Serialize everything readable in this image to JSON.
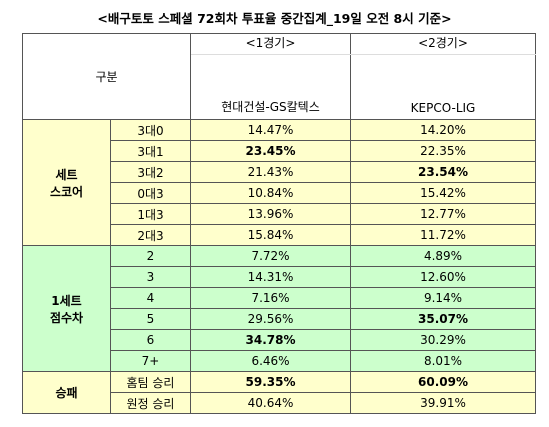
{
  "title": "<배구토토 스페셜 72회차 투표율 중간집계_19일 오전 8시 기준>",
  "header": {
    "corner": "구분",
    "games": [
      "<1경기>",
      "<2경기>"
    ],
    "teams": [
      "현대건설-GS칼텍스",
      "KEPCO-LIG"
    ]
  },
  "groups": [
    {
      "label": [
        "세트",
        "스코어"
      ],
      "color": "#ffffcc",
      "rows": [
        {
          "label": "3대0",
          "values": [
            "14.47%",
            "14.20%"
          ],
          "bold": [
            false,
            false
          ]
        },
        {
          "label": "3대1",
          "values": [
            "23.45%",
            "22.35%"
          ],
          "bold": [
            true,
            false
          ]
        },
        {
          "label": "3대2",
          "values": [
            "21.43%",
            "23.54%"
          ],
          "bold": [
            false,
            true
          ]
        },
        {
          "label": "0대3",
          "values": [
            "10.84%",
            "15.42%"
          ],
          "bold": [
            false,
            false
          ]
        },
        {
          "label": "1대3",
          "values": [
            "13.96%",
            "12.77%"
          ],
          "bold": [
            false,
            false
          ]
        },
        {
          "label": "2대3",
          "values": [
            "15.84%",
            "11.72%"
          ],
          "bold": [
            false,
            false
          ]
        }
      ]
    },
    {
      "label": [
        "1세트",
        "점수차"
      ],
      "color": "#ccffcc",
      "rows": [
        {
          "label": "2",
          "values": [
            "7.72%",
            "4.89%"
          ],
          "bold": [
            false,
            false
          ]
        },
        {
          "label": "3",
          "values": [
            "14.31%",
            "12.60%"
          ],
          "bold": [
            false,
            false
          ]
        },
        {
          "label": "4",
          "values": [
            "7.16%",
            "9.14%"
          ],
          "bold": [
            false,
            false
          ]
        },
        {
          "label": "5",
          "values": [
            "29.56%",
            "35.07%"
          ],
          "bold": [
            false,
            true
          ]
        },
        {
          "label": "6",
          "values": [
            "34.78%",
            "30.29%"
          ],
          "bold": [
            true,
            false
          ]
        },
        {
          "label": "7+",
          "values": [
            "6.46%",
            "8.01%"
          ],
          "bold": [
            false,
            false
          ]
        }
      ]
    },
    {
      "label": [
        "승패"
      ],
      "color": "#ffffcc",
      "rows": [
        {
          "label": "홈팀 승리",
          "values": [
            "59.35%",
            "60.09%"
          ],
          "bold": [
            true,
            true
          ]
        },
        {
          "label": "원정 승리",
          "values": [
            "40.64%",
            "39.91%"
          ],
          "bold": [
            false,
            false
          ]
        }
      ]
    }
  ]
}
